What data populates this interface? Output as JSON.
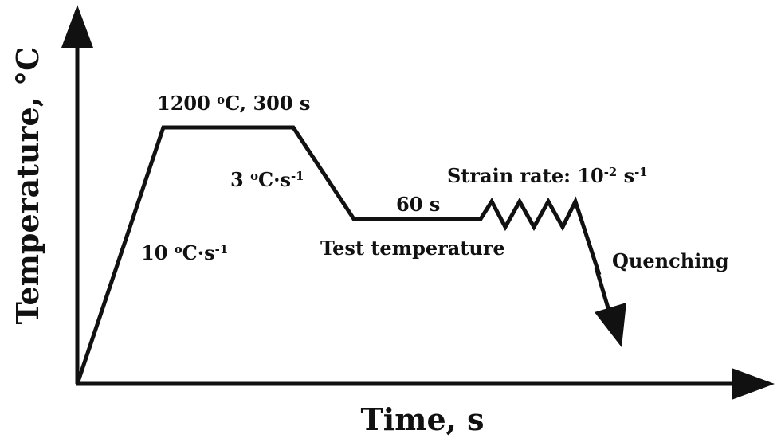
{
  "diagram": {
    "y_axis_title": "Temperature, °C",
    "x_axis_title": "Time, s",
    "annotations": {
      "soak": {
        "value": "1200",
        "sup": "o",
        "rest": "C, 300 s"
      },
      "cooling_rate": {
        "value": "3",
        "sup_o": "o",
        "unit": "C·s",
        "sup_exp": "-1"
      },
      "heating_rate": {
        "value": "10",
        "sup_o": "o",
        "unit": "C·s",
        "sup_exp": "-1"
      },
      "hold_time": "60 s",
      "test_temperature": "Test temperature",
      "strain_rate": {
        "prefix": "Strain rate: 10",
        "sup_exp1": "-2",
        "unit": "s",
        "sup_exp2": "-1"
      },
      "quenching": "Quenching"
    },
    "colors": {
      "line": "#111111",
      "background": "#ffffff"
    }
  }
}
